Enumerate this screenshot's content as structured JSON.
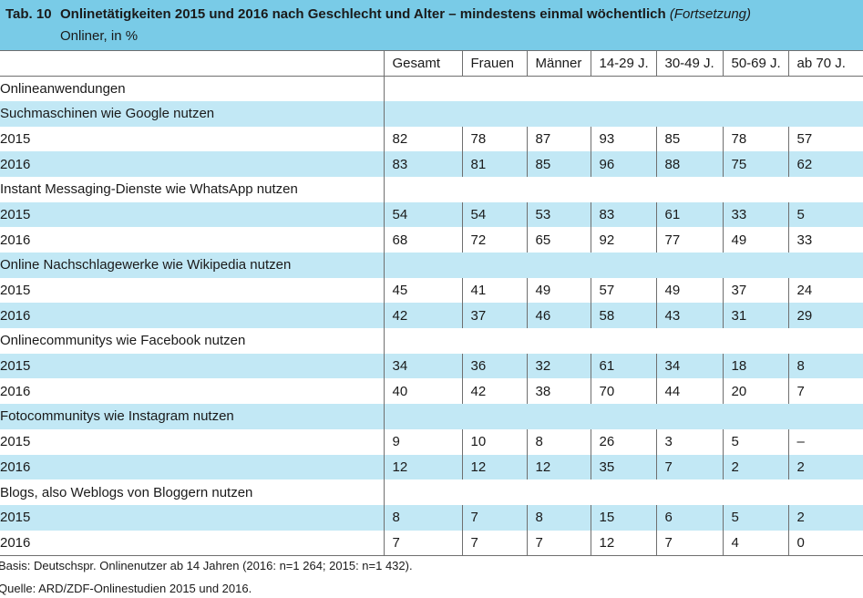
{
  "header": {
    "table_number": "Tab. 10",
    "title": "Onlinetätigkeiten 2015 und 2016 nach Geschlecht und Alter – mindestens einmal wöchentlich",
    "continuation": "(Fortsetzung)",
    "subtitle": "Onliner, in %"
  },
  "columns": [
    "Gesamt",
    "Frauen",
    "Männer",
    "14-29 J.",
    "30-49 J.",
    "50-69 J.",
    "ab 70 J."
  ],
  "section_label": "Onlineanwendungen",
  "categories": [
    {
      "label": "Suchmaschinen wie Google nutzen",
      "rows": [
        {
          "year": "2015",
          "values": [
            "82",
            "78",
            "87",
            "93",
            "85",
            "78",
            "57"
          ]
        },
        {
          "year": "2016",
          "values": [
            "83",
            "81",
            "85",
            "96",
            "88",
            "75",
            "62"
          ]
        }
      ]
    },
    {
      "label": "Instant Messaging-Dienste wie WhatsApp nutzen",
      "rows": [
        {
          "year": "2015",
          "values": [
            "54",
            "54",
            "53",
            "83",
            "61",
            "33",
            "5"
          ]
        },
        {
          "year": "2016",
          "values": [
            "68",
            "72",
            "65",
            "92",
            "77",
            "49",
            "33"
          ]
        }
      ]
    },
    {
      "label": "Online Nachschlagewerke wie Wikipedia nutzen",
      "rows": [
        {
          "year": "2015",
          "values": [
            "45",
            "41",
            "49",
            "57",
            "49",
            "37",
            "24"
          ]
        },
        {
          "year": "2016",
          "values": [
            "42",
            "37",
            "46",
            "58",
            "43",
            "31",
            "29"
          ]
        }
      ]
    },
    {
      "label": "Onlinecommunitys wie Facebook nutzen",
      "rows": [
        {
          "year": "2015",
          "values": [
            "34",
            "36",
            "32",
            "61",
            "34",
            "18",
            "8"
          ]
        },
        {
          "year": "2016",
          "values": [
            "40",
            "42",
            "38",
            "70",
            "44",
            "20",
            "7"
          ]
        }
      ]
    },
    {
      "label": "Fotocommunitys wie Instagram nutzen",
      "rows": [
        {
          "year": "2015",
          "values": [
            "9",
            "10",
            "8",
            "26",
            "3",
            "5",
            "–"
          ]
        },
        {
          "year": "2016",
          "values": [
            "12",
            "12",
            "12",
            "35",
            "7",
            "2",
            "2"
          ]
        }
      ]
    },
    {
      "label": "Blogs, also Weblogs von Bloggern nutzen",
      "rows": [
        {
          "year": "2015",
          "values": [
            "8",
            "7",
            "8",
            "15",
            "6",
            "5",
            "2"
          ]
        },
        {
          "year": "2016",
          "values": [
            "7",
            "7",
            "7",
            "12",
            "7",
            "4",
            "0"
          ]
        }
      ]
    }
  ],
  "footer": {
    "basis": "Basis: Deutschspr. Onlinenutzer ab 14 Jahren (2016: n=1 264; 2015: n=1 432).",
    "source": "Quelle: ARD/ZDF-Onlinestudien 2015 und 2016."
  },
  "colors": {
    "header_background": "#79cbe7",
    "stripe_blue": "#c2e8f5",
    "stripe_white": "#ffffff"
  }
}
